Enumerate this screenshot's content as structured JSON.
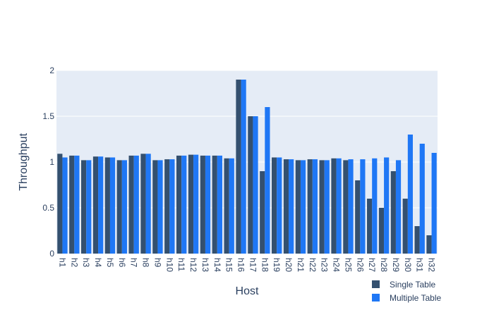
{
  "chart_data": {
    "type": "bar",
    "title": "",
    "xlabel": "Host",
    "ylabel": "Throughput",
    "ylim": [
      0,
      2
    ],
    "yticks": [
      0,
      0.5,
      1,
      1.5,
      2
    ],
    "ytick_labels": [
      "0",
      "0.5",
      "1",
      "1.5",
      "2"
    ],
    "grid": true,
    "legend_position": "bottom-right",
    "categories": [
      "h1",
      "h2",
      "h3",
      "h4",
      "h5",
      "h6",
      "h7",
      "h8",
      "h9",
      "h10",
      "h11",
      "h12",
      "h13",
      "h14",
      "h15",
      "h16",
      "h17",
      "h18",
      "h19",
      "h20",
      "h21",
      "h22",
      "h23",
      "h24",
      "h25",
      "h26",
      "h27",
      "h28",
      "h29",
      "h30",
      "h31",
      "h32"
    ],
    "series": [
      {
        "name": "Single Table",
        "color": "#34506f",
        "values": [
          1.09,
          1.07,
          1.02,
          1.06,
          1.05,
          1.02,
          1.07,
          1.09,
          1.02,
          1.03,
          1.07,
          1.08,
          1.07,
          1.07,
          1.04,
          1.9,
          1.5,
          0.9,
          1.05,
          1.03,
          1.02,
          1.03,
          1.02,
          1.04,
          1.02,
          0.8,
          0.6,
          0.5,
          0.9,
          0.6,
          0.3,
          0.2
        ]
      },
      {
        "name": "Multiple Table",
        "color": "#1f77f5",
        "values": [
          1.05,
          1.07,
          1.02,
          1.06,
          1.05,
          1.02,
          1.07,
          1.09,
          1.02,
          1.03,
          1.07,
          1.08,
          1.07,
          1.07,
          1.04,
          1.9,
          1.5,
          1.6,
          1.05,
          1.03,
          1.02,
          1.03,
          1.02,
          1.04,
          1.03,
          1.03,
          1.04,
          1.05,
          1.02,
          1.3,
          1.2,
          1.1
        ]
      }
    ]
  }
}
